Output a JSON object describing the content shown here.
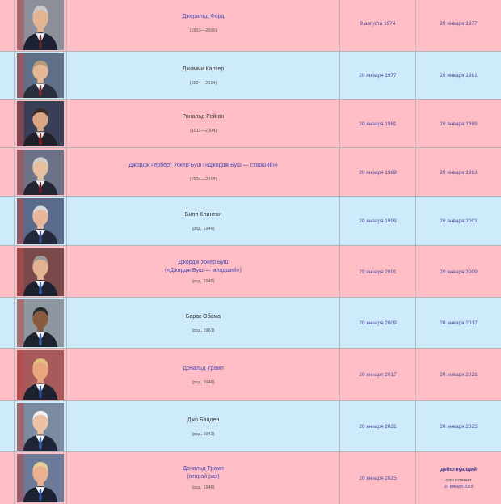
{
  "presidents": [
    {
      "name": "Джеральд Форд",
      "name_is_link": true,
      "name_line2": "",
      "life": "(1913—2006)",
      "start": "9 августа 1974",
      "end": "20 января 1977",
      "row_color": "pink",
      "portrait": "portrait-icon-gerald-ford",
      "bg": "#8a8f9a",
      "skin": "#e2b492",
      "hair": "#c9c9c9",
      "suit": "#1c2233",
      "tie": "#5a2a2a"
    },
    {
      "name": "Джимми Картер",
      "name_is_link": false,
      "name_line2": "",
      "life": "(1924—2024)",
      "start": "20 января 1977",
      "end": "20 января 1981",
      "row_color": "blue",
      "portrait": "portrait-icon-jimmy-carter",
      "bg": "#5f6f88",
      "skin": "#e5b895",
      "hair": "#b4997a",
      "suit": "#2a2f3c",
      "tie": "#7a2a30"
    },
    {
      "name": "Рональд Рейган",
      "name_is_link": false,
      "name_line2": "",
      "life": "(1911—2004)",
      "start": "20 января 1981",
      "end": "20 января 1989",
      "row_color": "pink",
      "portrait": "portrait-icon-ronald-reagan",
      "bg": "#3a3f58",
      "skin": "#d9a583",
      "hair": "#3c2a22",
      "suit": "#1f2028",
      "tie": "#8c1c24"
    },
    {
      "name": "Джордж Герберт Уокер Буш («Джордж Буш — старший»)",
      "name_is_link": true,
      "name_line2": "",
      "life": "(1924—2018)",
      "start": "20 января 1989",
      "end": "20 января 1993",
      "row_color": "pink",
      "portrait": "portrait-icon-george-hw-bush",
      "bg": "#6c7386",
      "skin": "#e6bea0",
      "hair": "#cfcfcf",
      "suit": "#222633",
      "tie": "#6a1a2a"
    },
    {
      "name": "Билл Клинтон",
      "name_is_link": false,
      "name_line2": "",
      "life": "(род. 1946)",
      "start": "20 января 1993",
      "end": "20 января 2001",
      "row_color": "blue",
      "portrait": "portrait-icon-bill-clinton",
      "bg": "#5a6a8a",
      "skin": "#e8b69a",
      "hair": "#d8d8d8",
      "suit": "#23283a",
      "tie": "#3a4a8a"
    },
    {
      "name": "Джордж Уокер Буш",
      "name_is_link": true,
      "name_line2": "(«Джордж Буш — младший»)",
      "life": "(род. 1946)",
      "start": "20 января 2001",
      "end": "20 января 2009",
      "row_color": "pink",
      "portrait": "portrait-icon-george-w-bush",
      "bg": "#7a4a4a",
      "skin": "#e3b292",
      "hair": "#9a9a9a",
      "suit": "#1d2230",
      "tie": "#2e5aa0"
    },
    {
      "name": "Барак Обама",
      "name_is_link": false,
      "name_line2": "",
      "life": "(род. 1961)",
      "start": "20 января 2009",
      "end": "20 января 2017",
      "row_color": "blue",
      "portrait": "portrait-icon-barack-obama",
      "bg": "#8e96a0",
      "skin": "#8a5a3e",
      "hair": "#2a2a2a",
      "suit": "#1e2330",
      "tie": "#3a5ea8"
    },
    {
      "name": "Дональд Трамп",
      "name_is_link": true,
      "name_line2": "",
      "life": "(род. 1946)",
      "start": "20 января 2017",
      "end": "20 января 2021",
      "row_color": "pink",
      "portrait": "portrait-icon-donald-trump",
      "bg": "#a85a5a",
      "skin": "#e8a67e",
      "hair": "#e0c07a",
      "suit": "#1d2230",
      "tie": "#2a4a9a"
    },
    {
      "name": "Джо Байден",
      "name_is_link": false,
      "name_line2": "",
      "life": "(род. 1942)",
      "start": "20 января 2021",
      "end": "20 января 2025",
      "row_color": "blue",
      "portrait": "portrait-icon-joe-biden",
      "bg": "#7a8aa0",
      "skin": "#ecc2a4",
      "hair": "#f0f0f0",
      "suit": "#1f2536",
      "tie": "#3a64b0"
    },
    {
      "name": "Дональд Трамп",
      "name_is_link": true,
      "name_line2": "(второй раз)",
      "life": "(род. 1946)",
      "start": "20 января 2025",
      "end": "действующий",
      "end_is_current": true,
      "expires_label": "срок истекает",
      "expires_date": "20 января 2029",
      "row_color": "pink",
      "portrait": "portrait-icon-donald-trump",
      "bg": "#6a7a98",
      "skin": "#eab090",
      "hair": "#e6d09a",
      "suit": "#1d2232",
      "tie": "#3050a0"
    }
  ],
  "colors": {
    "pink_row": "#ffbec6",
    "blue_row": "#cdebfa",
    "link": "#4a4ab4",
    "grid": "#b9b9b9"
  }
}
